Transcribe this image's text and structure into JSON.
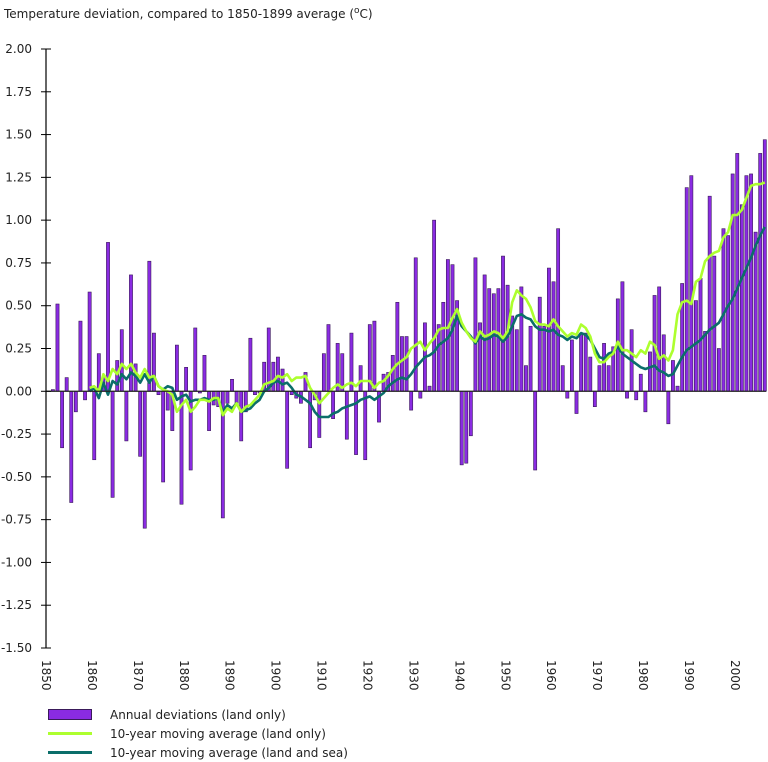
{
  "chart_data": {
    "type": "bar",
    "title": "Temperature deviation, compared to 1850-1899 average (",
    "title_unit_sup": "o",
    "title_unit_suffix": "C)",
    "xlabel": "",
    "ylabel": "",
    "ylim": [
      -1.5,
      2.0
    ],
    "xlim": [
      1850,
      2006
    ],
    "grid": false,
    "legend_position": "bottom-left",
    "y_ticks": [
      "2.00",
      "1.75",
      "1.50",
      "1.25",
      "1.00",
      "0.75",
      "0.50",
      "0.25",
      "0.00",
      "-0.25",
      "-0.50",
      "-0.75",
      "-1.00",
      "-1.25",
      "-1.50"
    ],
    "x_ticks": [
      "1850",
      "1860",
      "1870",
      "1880",
      "1890",
      "1900",
      "1910",
      "1920",
      "1930",
      "1940",
      "1950",
      "1960",
      "1970",
      "1980",
      "1990",
      "2000"
    ],
    "colors": {
      "bars": "#8a2be2",
      "bar_edge": "#3a1a5a",
      "land_only_ma": "#adff2f",
      "land_sea_ma": "#0b6e6a",
      "axis": "#000000"
    },
    "series": [
      {
        "name": "Annual deviations (land only)",
        "kind": "bar",
        "start_year": 1850,
        "values": [
          0.0,
          0.01,
          0.51,
          -0.33,
          0.08,
          -0.65,
          -0.12,
          0.41,
          -0.05,
          0.58,
          -0.4,
          0.22,
          0.08,
          0.87,
          -0.62,
          0.18,
          0.36,
          -0.29,
          0.68,
          0.16,
          -0.38,
          -0.8,
          0.76,
          0.34,
          -0.02,
          -0.53,
          -0.11,
          -0.23,
          0.27,
          -0.66,
          0.14,
          -0.46,
          0.37,
          -0.01,
          0.21,
          -0.23,
          -0.08,
          -0.09,
          -0.74,
          -0.07,
          0.07,
          -0.08,
          -0.29,
          -0.12,
          0.31,
          -0.02,
          -0.01,
          0.17,
          0.37,
          0.17,
          0.2,
          0.13,
          -0.45,
          -0.02,
          -0.04,
          -0.07,
          0.11,
          -0.33,
          -0.05,
          -0.27,
          0.22,
          0.39,
          -0.16,
          0.28,
          0.22,
          -0.28,
          0.34,
          -0.37,
          0.15,
          -0.4,
          0.39,
          0.41,
          -0.18,
          0.1,
          0.11,
          0.21,
          0.52,
          0.32,
          0.32,
          -0.11,
          0.78,
          -0.04,
          0.4,
          0.03,
          1.0,
          0.39,
          0.52,
          0.77,
          0.74,
          0.53,
          -0.43,
          -0.42,
          -0.26,
          0.78,
          0.4,
          0.68,
          0.6,
          0.57,
          0.6,
          0.79,
          0.62,
          0.44,
          0.36,
          0.61,
          0.15,
          0.38,
          -0.46,
          0.55,
          0.38,
          0.72,
          0.64,
          0.95,
          0.15,
          -0.04,
          0.3,
          -0.13,
          0.34,
          0.34,
          0.2,
          -0.09,
          0.15,
          0.28,
          0.15,
          0.26,
          0.54,
          0.64,
          -0.04,
          0.36,
          -0.05,
          0.1,
          -0.12,
          0.23,
          0.56,
          0.61,
          0.33,
          -0.19,
          0.18,
          0.03,
          0.63,
          1.19,
          1.26,
          0.53,
          0.66,
          0.35,
          1.14,
          0.79,
          0.25,
          0.95,
          0.91,
          1.27,
          1.39,
          1.09,
          1.26,
          1.27,
          0.93,
          1.39,
          1.47
        ]
      },
      {
        "name": "10-year moving average (land only)",
        "kind": "line",
        "start_year": 1859,
        "values": [
          0.02,
          0.03,
          0.0,
          0.1,
          0.06,
          0.13,
          0.1,
          0.16,
          0.13,
          0.16,
          0.11,
          0.08,
          0.13,
          0.08,
          0.09,
          0.03,
          0.01,
          0.0,
          -0.02,
          -0.12,
          -0.08,
          -0.05,
          -0.12,
          -0.09,
          -0.05,
          -0.05,
          -0.06,
          -0.04,
          -0.04,
          -0.14,
          -0.1,
          -0.12,
          -0.07,
          -0.12,
          -0.09,
          -0.08,
          -0.05,
          -0.02,
          0.04,
          0.05,
          0.06,
          0.09,
          0.08,
          0.1,
          0.06,
          0.08,
          0.08,
          0.09,
          0.02,
          -0.02,
          -0.07,
          -0.04,
          -0.01,
          0.02,
          0.04,
          0.02,
          0.04,
          0.05,
          0.03,
          0.06,
          0.06,
          0.06,
          0.02,
          0.05,
          0.06,
          0.09,
          0.13,
          0.16,
          0.18,
          0.2,
          0.25,
          0.27,
          0.29,
          0.24,
          0.28,
          0.31,
          0.36,
          0.37,
          0.37,
          0.43,
          0.48,
          0.4,
          0.35,
          0.31,
          0.29,
          0.35,
          0.32,
          0.33,
          0.35,
          0.34,
          0.31,
          0.35,
          0.52,
          0.59,
          0.56,
          0.54,
          0.49,
          0.41,
          0.39,
          0.39,
          0.38,
          0.42,
          0.38,
          0.35,
          0.32,
          0.34,
          0.33,
          0.39,
          0.37,
          0.32,
          0.22,
          0.17,
          0.17,
          0.2,
          0.22,
          0.29,
          0.24,
          0.24,
          0.22,
          0.2,
          0.24,
          0.22,
          0.29,
          0.27,
          0.19,
          0.21,
          0.18,
          0.24,
          0.45,
          0.52,
          0.53,
          0.51,
          0.64,
          0.66,
          0.76,
          0.79,
          0.81,
          0.82,
          0.9,
          0.93,
          1.03,
          1.03,
          1.06,
          1.13,
          1.2,
          1.21,
          1.21,
          1.22
        ]
      },
      {
        "name": "10-year moving average (land and sea)",
        "kind": "line",
        "start_year": 1859,
        "values": [
          0.0,
          0.02,
          -0.04,
          0.05,
          -0.02,
          0.06,
          0.04,
          0.1,
          0.07,
          0.11,
          0.09,
          0.05,
          0.1,
          0.05,
          0.09,
          0.03,
          0.01,
          0.03,
          0.02,
          -0.05,
          -0.03,
          -0.02,
          -0.06,
          -0.05,
          -0.05,
          -0.04,
          -0.05,
          -0.05,
          -0.04,
          -0.12,
          -0.08,
          -0.1,
          -0.07,
          -0.12,
          -0.11,
          -0.1,
          -0.07,
          -0.05,
          0.0,
          0.02,
          0.05,
          0.06,
          0.04,
          0.05,
          0.02,
          -0.02,
          -0.03,
          -0.05,
          -0.07,
          -0.12,
          -0.15,
          -0.15,
          -0.15,
          -0.13,
          -0.12,
          -0.1,
          -0.09,
          -0.08,
          -0.07,
          -0.05,
          -0.04,
          -0.03,
          -0.05,
          -0.03,
          -0.01,
          0.03,
          0.05,
          0.07,
          0.08,
          0.07,
          0.1,
          0.14,
          0.17,
          0.2,
          0.21,
          0.23,
          0.27,
          0.29,
          0.31,
          0.36,
          0.44,
          0.38,
          0.35,
          0.32,
          0.28,
          0.32,
          0.3,
          0.31,
          0.33,
          0.32,
          0.29,
          0.32,
          0.38,
          0.44,
          0.45,
          0.43,
          0.42,
          0.38,
          0.36,
          0.36,
          0.35,
          0.36,
          0.33,
          0.32,
          0.3,
          0.32,
          0.31,
          0.34,
          0.33,
          0.3,
          0.25,
          0.2,
          0.19,
          0.22,
          0.23,
          0.26,
          0.22,
          0.2,
          0.18,
          0.16,
          0.14,
          0.13,
          0.14,
          0.15,
          0.12,
          0.11,
          0.09,
          0.1,
          0.15,
          0.2,
          0.24,
          0.26,
          0.28,
          0.3,
          0.33,
          0.36,
          0.38,
          0.4,
          0.45,
          0.5,
          0.54,
          0.6,
          0.66,
          0.72,
          0.78,
          0.85,
          0.91,
          0.96
        ]
      }
    ]
  }
}
